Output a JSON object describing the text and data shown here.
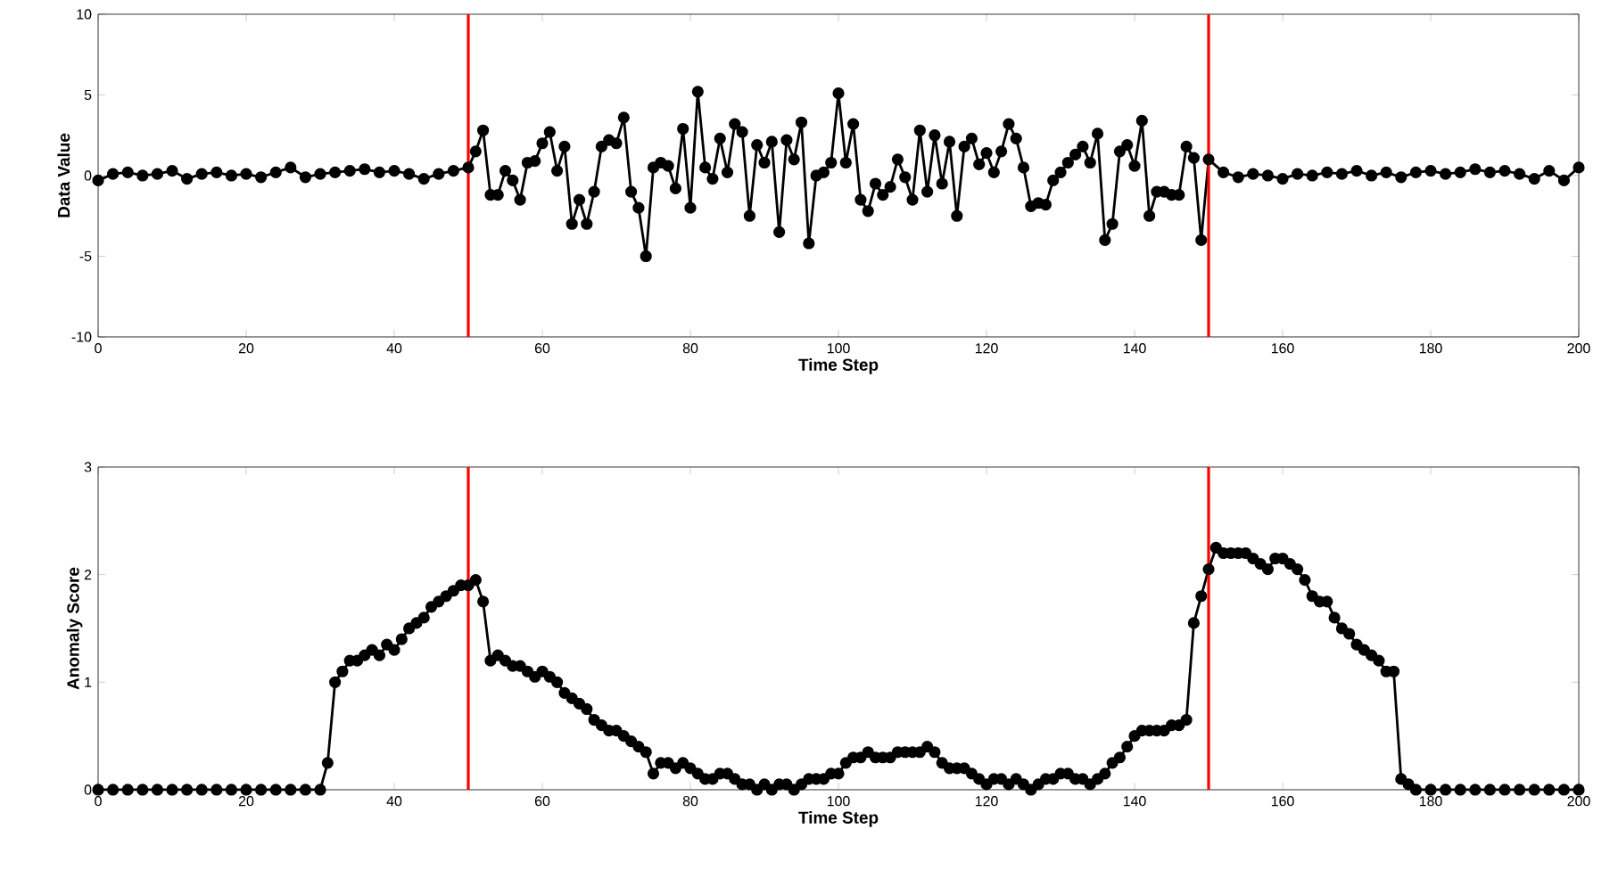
{
  "chart_data": [
    {
      "type": "line",
      "xlabel": "Time Step",
      "ylabel": "Data Value",
      "xlim": [
        0,
        200
      ],
      "ylim": [
        -10,
        10
      ],
      "xticks": [
        0,
        20,
        40,
        60,
        80,
        100,
        120,
        140,
        160,
        180,
        200
      ],
      "yticks": [
        -10,
        -5,
        0,
        5,
        10
      ],
      "marker": "circle",
      "line_style": "solid",
      "series": [
        {
          "color": "#000000",
          "x": [
            0,
            2,
            4,
            6,
            8,
            10,
            12,
            14,
            16,
            18,
            20,
            22,
            24,
            26,
            28,
            30,
            32,
            34,
            36,
            38,
            40,
            42,
            44,
            46,
            48,
            50,
            51,
            52,
            53,
            54,
            55,
            56,
            57,
            58,
            59,
            60,
            61,
            62,
            63,
            64,
            65,
            66,
            67,
            68,
            69,
            70,
            71,
            72,
            73,
            74,
            75,
            76,
            77,
            78,
            79,
            80,
            81,
            82,
            83,
            84,
            85,
            86,
            87,
            88,
            89,
            90,
            91,
            92,
            93,
            94,
            95,
            96,
            97,
            98,
            99,
            100,
            101,
            102,
            103,
            104,
            105,
            106,
            107,
            108,
            109,
            110,
            111,
            112,
            113,
            114,
            115,
            116,
            117,
            118,
            119,
            120,
            121,
            122,
            123,
            124,
            125,
            126,
            127,
            128,
            129,
            130,
            131,
            132,
            133,
            134,
            135,
            136,
            137,
            138,
            139,
            140,
            141,
            142,
            143,
            144,
            145,
            146,
            147,
            148,
            149,
            150,
            152,
            154,
            156,
            158,
            160,
            162,
            164,
            166,
            168,
            170,
            172,
            174,
            176,
            178,
            180,
            182,
            184,
            186,
            188,
            190,
            192,
            194,
            196,
            198,
            200
          ],
          "values": [
            -0.3,
            0.1,
            0.2,
            0,
            0.1,
            0.3,
            -0.2,
            0.1,
            0.2,
            0,
            0.1,
            -0.1,
            0.2,
            0.5,
            -0.1,
            0.1,
            0.2,
            0.3,
            0.4,
            0.2,
            0.3,
            0.1,
            -0.2,
            0.1,
            0.3,
            0.5,
            1.5,
            2.8,
            -1.2,
            -1.2,
            0.3,
            -0.3,
            -1.5,
            0.8,
            0.9,
            2.0,
            2.7,
            0.3,
            1.8,
            -3,
            -1.5,
            -3,
            -1,
            1.8,
            2.2,
            2.0,
            3.6,
            -1,
            -2,
            -5,
            0.5,
            0.8,
            0.6,
            -0.8,
            2.9,
            -2,
            5.2,
            0.5,
            -0.2,
            2.3,
            0.2,
            3.2,
            2.7,
            -2.5,
            1.9,
            0.8,
            2.1,
            -3.5,
            2.2,
            1.0,
            3.3,
            -4.2,
            0,
            0.2,
            0.8,
            5.1,
            0.8,
            3.2,
            -1.5,
            -2.2,
            -0.5,
            -1.2,
            -0.7,
            1.0,
            -0.1,
            -1.5,
            2.8,
            -1,
            2.5,
            -0.5,
            2.1,
            -2.5,
            1.8,
            2.3,
            0.7,
            1.4,
            0.2,
            1.5,
            3.2,
            2.3,
            0.5,
            -1.9,
            -1.7,
            -1.8,
            -0.3,
            0.2,
            0.8,
            1.3,
            1.8,
            0.8,
            2.6,
            -4,
            -3,
            1.5,
            1.9,
            0.6,
            3.4,
            -2.5,
            -1,
            -1,
            -1.2,
            -1.2,
            1.8,
            1.1,
            -4,
            1.0,
            0.2,
            -0.1,
            0.1,
            0,
            -0.2,
            0.1,
            0,
            0.2,
            0.1,
            0.3,
            0,
            0.2,
            -0.1,
            0.2,
            0.3,
            0.1,
            0.2,
            0.4,
            0.2,
            0.3,
            0.1,
            -0.2,
            0.3,
            -0.3,
            0.5
          ]
        }
      ],
      "ref_lines": [
        {
          "axis": "x",
          "value": 50,
          "color": "#ff0000"
        },
        {
          "axis": "x",
          "value": 150,
          "color": "#ff0000"
        }
      ]
    },
    {
      "type": "line",
      "xlabel": "Time Step",
      "ylabel": "Anomaly Score",
      "xlim": [
        0,
        200
      ],
      "ylim": [
        0,
        3
      ],
      "xticks": [
        0,
        20,
        40,
        60,
        80,
        100,
        120,
        140,
        160,
        180,
        200
      ],
      "yticks": [
        0,
        1,
        2,
        3
      ],
      "marker": "circle",
      "line_style": "solid",
      "series": [
        {
          "color": "#000000",
          "x": [
            0,
            2,
            4,
            6,
            8,
            10,
            12,
            14,
            16,
            18,
            20,
            22,
            24,
            26,
            28,
            30,
            31,
            32,
            33,
            34,
            35,
            36,
            37,
            38,
            39,
            40,
            41,
            42,
            43,
            44,
            45,
            46,
            47,
            48,
            49,
            50,
            51,
            52,
            53,
            54,
            55,
            56,
            57,
            58,
            59,
            60,
            61,
            62,
            63,
            64,
            65,
            66,
            67,
            68,
            69,
            70,
            71,
            72,
            73,
            74,
            75,
            76,
            77,
            78,
            79,
            80,
            81,
            82,
            83,
            84,
            85,
            86,
            87,
            88,
            89,
            90,
            91,
            92,
            93,
            94,
            95,
            96,
            97,
            98,
            99,
            100,
            101,
            102,
            103,
            104,
            105,
            106,
            107,
            108,
            109,
            110,
            111,
            112,
            113,
            114,
            115,
            116,
            117,
            118,
            119,
            120,
            121,
            122,
            123,
            124,
            125,
            126,
            127,
            128,
            129,
            130,
            131,
            132,
            133,
            134,
            135,
            136,
            137,
            138,
            139,
            140,
            141,
            142,
            143,
            144,
            145,
            146,
            147,
            148,
            149,
            150,
            151,
            152,
            153,
            154,
            155,
            156,
            157,
            158,
            159,
            160,
            161,
            162,
            163,
            164,
            165,
            166,
            167,
            168,
            169,
            170,
            171,
            172,
            173,
            174,
            175,
            176,
            177,
            178,
            180,
            182,
            184,
            186,
            188,
            190,
            192,
            194,
            196,
            198,
            200
          ],
          "values": [
            0,
            0,
            0,
            0,
            0,
            0,
            0,
            0,
            0,
            0,
            0,
            0,
            0,
            0,
            0,
            0,
            0.25,
            1.0,
            1.1,
            1.2,
            1.2,
            1.25,
            1.3,
            1.25,
            1.35,
            1.3,
            1.4,
            1.5,
            1.55,
            1.6,
            1.7,
            1.75,
            1.8,
            1.85,
            1.9,
            1.9,
            1.95,
            1.75,
            1.2,
            1.25,
            1.2,
            1.15,
            1.15,
            1.1,
            1.05,
            1.1,
            1.05,
            1.0,
            0.9,
            0.85,
            0.8,
            0.75,
            0.65,
            0.6,
            0.55,
            0.55,
            0.5,
            0.45,
            0.4,
            0.35,
            0.15,
            0.25,
            0.25,
            0.2,
            0.25,
            0.2,
            0.15,
            0.1,
            0.1,
            0.15,
            0.15,
            0.1,
            0.05,
            0.05,
            0.0,
            0.05,
            0.0,
            0.05,
            0.05,
            0.0,
            0.05,
            0.1,
            0.1,
            0.1,
            0.15,
            0.15,
            0.25,
            0.3,
            0.3,
            0.35,
            0.3,
            0.3,
            0.3,
            0.35,
            0.35,
            0.35,
            0.35,
            0.4,
            0.35,
            0.25,
            0.2,
            0.2,
            0.2,
            0.15,
            0.1,
            0.05,
            0.1,
            0.1,
            0.05,
            0.1,
            0.05,
            0.0,
            0.05,
            0.1,
            0.1,
            0.15,
            0.15,
            0.1,
            0.1,
            0.05,
            0.1,
            0.15,
            0.25,
            0.3,
            0.4,
            0.5,
            0.55,
            0.55,
            0.55,
            0.55,
            0.6,
            0.6,
            0.65,
            1.55,
            1.8,
            2.05,
            2.25,
            2.2,
            2.2,
            2.2,
            2.2,
            2.15,
            2.1,
            2.05,
            2.15,
            2.15,
            2.1,
            2.05,
            1.95,
            1.8,
            1.75,
            1.75,
            1.6,
            1.5,
            1.45,
            1.35,
            1.3,
            1.25,
            1.2,
            1.1,
            1.1,
            0.1,
            0.05,
            0,
            0,
            0,
            0,
            0,
            0,
            0,
            0,
            0,
            0,
            0,
            0
          ]
        }
      ],
      "ref_lines": [
        {
          "axis": "x",
          "value": 50,
          "color": "#ff0000"
        },
        {
          "axis": "x",
          "value": 150,
          "color": "#ff0000"
        }
      ]
    }
  ]
}
